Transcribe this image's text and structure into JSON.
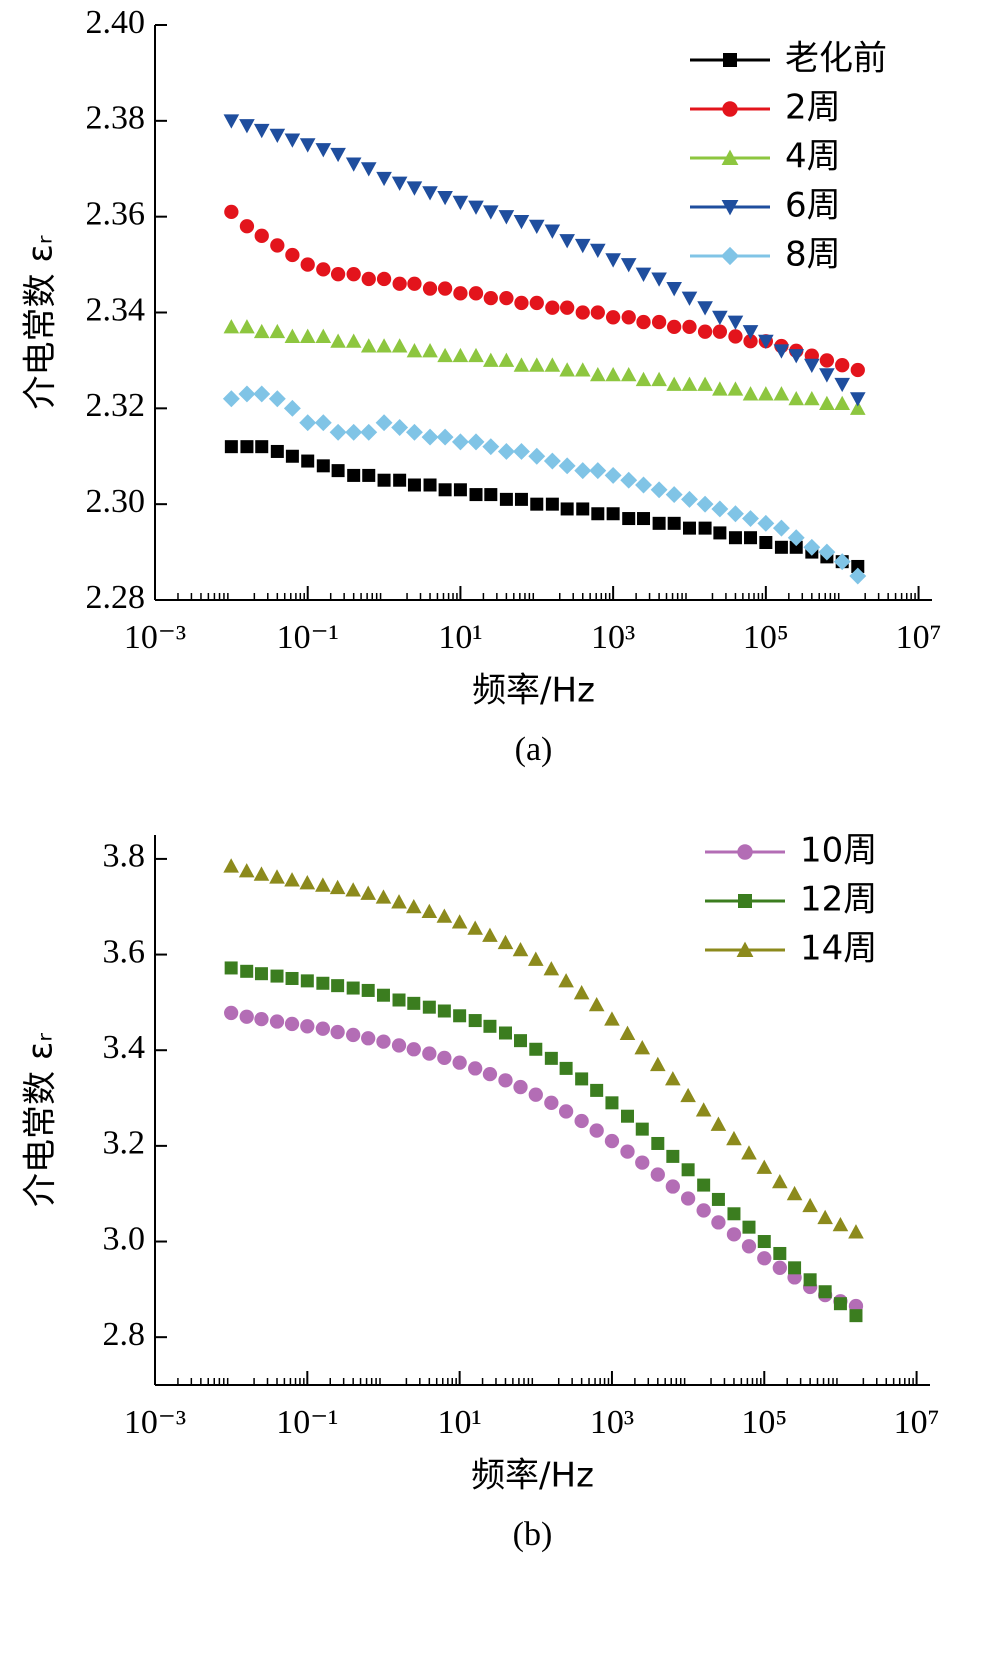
{
  "chart_data": [
    {
      "type": "scatter",
      "xlabel": "频率/Hz",
      "ylabel": "介电常数 εᵣ",
      "caption": "(a)",
      "xscale": "log",
      "legend": "upper right",
      "xlim": [
        0.001,
        15000000
      ],
      "xticks": [
        {
          "value": 0.001,
          "label": "10⁻³"
        },
        {
          "value": 0.1,
          "label": "10⁻¹"
        },
        {
          "value": 10,
          "label": "10¹"
        },
        {
          "value": 1000,
          "label": "10³"
        },
        {
          "value": 100000,
          "label": "10⁵"
        },
        {
          "value": 10000000,
          "label": "10⁷"
        }
      ],
      "ylim": [
        2.28,
        2.4
      ],
      "yticks": [
        2.28,
        {
          "value": 2.3,
          "label": "2.30"
        },
        2.32,
        2.34,
        2.36,
        2.38,
        {
          "value": 2.4,
          "label": "2.40"
        }
      ],
      "x": [
        0.01,
        0.016,
        0.025,
        0.04,
        0.063,
        0.1,
        0.16,
        0.25,
        0.4,
        0.63,
        1,
        1.6,
        2.5,
        4,
        6.3,
        10,
        16,
        25,
        40,
        63,
        100,
        160,
        250,
        400,
        630,
        1000,
        1600,
        2500,
        4000,
        6300,
        10000,
        16000,
        25000,
        40000,
        63000,
        100000,
        160000,
        250000,
        400000,
        630000,
        1000000,
        1600000
      ],
      "series": [
        {
          "name": "老化前",
          "color": "#000000",
          "marker": "square",
          "values": [
            2.312,
            2.312,
            2.312,
            2.311,
            2.31,
            2.309,
            2.308,
            2.307,
            2.306,
            2.306,
            2.305,
            2.305,
            2.304,
            2.304,
            2.303,
            2.303,
            2.302,
            2.302,
            2.301,
            2.301,
            2.3,
            2.3,
            2.299,
            2.299,
            2.298,
            2.298,
            2.297,
            2.297,
            2.296,
            2.296,
            2.295,
            2.295,
            2.294,
            2.293,
            2.293,
            2.292,
            2.291,
            2.291,
            2.29,
            2.289,
            2.288,
            2.287
          ]
        },
        {
          "name": "2周",
          "color": "#e3141c",
          "marker": "circle",
          "values": [
            2.361,
            2.358,
            2.356,
            2.354,
            2.352,
            2.35,
            2.349,
            2.348,
            2.348,
            2.347,
            2.347,
            2.346,
            2.346,
            2.345,
            2.345,
            2.344,
            2.344,
            2.343,
            2.343,
            2.342,
            2.342,
            2.341,
            2.341,
            2.34,
            2.34,
            2.339,
            2.339,
            2.338,
            2.338,
            2.337,
            2.337,
            2.336,
            2.336,
            2.335,
            2.334,
            2.334,
            2.333,
            2.332,
            2.331,
            2.33,
            2.329,
            2.328
          ]
        },
        {
          "name": "4周",
          "color": "#8dc63f",
          "marker": "triangle-up",
          "values": [
            2.337,
            2.337,
            2.336,
            2.336,
            2.335,
            2.335,
            2.335,
            2.334,
            2.334,
            2.333,
            2.333,
            2.333,
            2.332,
            2.332,
            2.331,
            2.331,
            2.331,
            2.33,
            2.33,
            2.329,
            2.329,
            2.329,
            2.328,
            2.328,
            2.327,
            2.327,
            2.327,
            2.326,
            2.326,
            2.325,
            2.325,
            2.325,
            2.324,
            2.324,
            2.323,
            2.323,
            2.323,
            2.322,
            2.322,
            2.321,
            2.321,
            2.32
          ]
        },
        {
          "name": "6周",
          "color": "#1f4e9e",
          "marker": "triangle-down",
          "values": [
            2.38,
            2.379,
            2.378,
            2.377,
            2.376,
            2.375,
            2.374,
            2.373,
            2.371,
            2.37,
            2.368,
            2.367,
            2.366,
            2.365,
            2.364,
            2.363,
            2.362,
            2.361,
            2.36,
            2.359,
            2.358,
            2.357,
            2.355,
            2.354,
            2.353,
            2.351,
            2.35,
            2.348,
            2.347,
            2.345,
            2.343,
            2.341,
            2.339,
            2.338,
            2.336,
            2.334,
            2.332,
            2.331,
            2.329,
            2.327,
            2.325,
            2.322
          ]
        },
        {
          "name": "8周",
          "color": "#80c4e6",
          "marker": "diamond",
          "values": [
            2.322,
            2.323,
            2.323,
            2.322,
            2.32,
            2.317,
            2.317,
            2.315,
            2.315,
            2.315,
            2.317,
            2.316,
            2.315,
            2.314,
            2.314,
            2.313,
            2.313,
            2.312,
            2.311,
            2.311,
            2.31,
            2.309,
            2.308,
            2.307,
            2.307,
            2.306,
            2.305,
            2.304,
            2.303,
            2.302,
            2.301,
            2.3,
            2.299,
            2.298,
            2.297,
            2.296,
            2.295,
            2.293,
            2.291,
            2.29,
            2.288,
            2.285
          ]
        }
      ]
    },
    {
      "type": "scatter",
      "xlabel": "频率/Hz",
      "ylabel": "介电常数 εᵣ",
      "caption": "(b)",
      "xscale": "log",
      "legend": "upper right",
      "xlim": [
        0.001,
        15000000
      ],
      "xticks": [
        {
          "value": 0.001,
          "label": "10⁻³"
        },
        {
          "value": 0.1,
          "label": "10⁻¹"
        },
        {
          "value": 10,
          "label": "10¹"
        },
        {
          "value": 1000,
          "label": "10³"
        },
        {
          "value": 100000,
          "label": "10⁵"
        },
        {
          "value": 10000000,
          "label": "10⁷"
        }
      ],
      "ylim": [
        2.7,
        3.85
      ],
      "yticks": [
        2.8,
        {
          "value": 3,
          "label": "3.0"
        },
        3.2,
        3.4,
        3.6,
        3.8
      ],
      "x": [
        0.01,
        0.016,
        0.025,
        0.04,
        0.063,
        0.1,
        0.16,
        0.25,
        0.4,
        0.63,
        1,
        1.6,
        2.5,
        4,
        6.3,
        10,
        16,
        25,
        40,
        63,
        100,
        160,
        250,
        400,
        630,
        1000,
        1600,
        2500,
        4000,
        6300,
        10000,
        16000,
        25000,
        40000,
        63000,
        100000,
        160000,
        250000,
        400000,
        630000,
        1000000,
        1600000
      ],
      "series": [
        {
          "name": "10周",
          "color": "#b36db5",
          "marker": "circle",
          "values": [
            3.478,
            3.47,
            3.465,
            3.46,
            3.455,
            3.45,
            3.445,
            3.438,
            3.432,
            3.425,
            3.418,
            3.41,
            3.402,
            3.393,
            3.384,
            3.374,
            3.362,
            3.35,
            3.337,
            3.323,
            3.307,
            3.29,
            3.272,
            3.252,
            3.232,
            3.21,
            3.188,
            3.165,
            3.14,
            3.115,
            3.09,
            3.065,
            3.04,
            3.015,
            2.99,
            2.965,
            2.945,
            2.925,
            2.905,
            2.888,
            2.875,
            2.865
          ]
        },
        {
          "name": "12周",
          "color": "#3b7d1f",
          "marker": "square",
          "values": [
            3.572,
            3.565,
            3.56,
            3.555,
            3.55,
            3.545,
            3.54,
            3.535,
            3.53,
            3.525,
            3.515,
            3.505,
            3.498,
            3.49,
            3.482,
            3.472,
            3.462,
            3.45,
            3.436,
            3.42,
            3.402,
            3.383,
            3.362,
            3.34,
            3.316,
            3.29,
            3.262,
            3.235,
            3.205,
            3.178,
            3.15,
            3.118,
            3.088,
            3.058,
            3.03,
            3.0,
            2.975,
            2.945,
            2.92,
            2.895,
            2.87,
            2.845
          ]
        },
        {
          "name": "14周",
          "color": "#8c8a1c",
          "marker": "triangle-up",
          "values": [
            3.785,
            3.775,
            3.768,
            3.762,
            3.756,
            3.75,
            3.745,
            3.74,
            3.735,
            3.728,
            3.72,
            3.71,
            3.7,
            3.69,
            3.68,
            3.668,
            3.655,
            3.64,
            3.625,
            3.61,
            3.59,
            3.57,
            3.545,
            3.52,
            3.495,
            3.465,
            3.435,
            3.405,
            3.37,
            3.34,
            3.305,
            3.275,
            3.245,
            3.215,
            3.185,
            3.155,
            3.125,
            3.1,
            3.075,
            3.05,
            3.035,
            3.02
          ]
        }
      ]
    }
  ]
}
